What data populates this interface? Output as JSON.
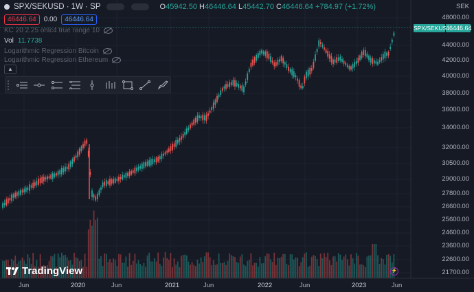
{
  "header": {
    "symbol": "SPX/SEKUSD · 1W · SP",
    "o_label": "O",
    "o_value": "45942.50",
    "h_label": "H",
    "h_value": "46446.64",
    "l_label": "L",
    "l_value": "45442.70",
    "c_label": "C",
    "c_value": "46446.64",
    "change": "+784.97 (+1.72%)",
    "sell_price": "46446.64",
    "spread": "0.00",
    "buy_price": "46446.64"
  },
  "indicators": [
    {
      "label": "KC 20 2.25 ohlc4 true range 10",
      "icon": "eye-off-icon"
    },
    {
      "label": "Vol",
      "value": "11.7738"
    },
    {
      "label": "Logarithmic Regression Bitcoin",
      "icon": "eye-off-icon"
    },
    {
      "label": "Logarithmic Regression Ethereum",
      "icon": "eye-off-icon"
    }
  ],
  "toolbar": [
    "grip-icon",
    "horizontal-lines-icon",
    "horizontal-ray-icon",
    "parallel-channel-icon",
    "fib-retracement-icon",
    "vertical-line-icon",
    "long-position-icon",
    "rectangle-icon",
    "trend-line-icon",
    "brush-icon"
  ],
  "price_axis": {
    "currency": "SEK",
    "ticks": [
      "48000.00",
      "46446.64",
      "44000.00",
      "42000.00",
      "40000.00",
      "38000.00",
      "36000.00",
      "34000.00",
      "32000.00",
      "30500.00",
      "29000.00",
      "27800.00",
      "26600.00",
      "25600.00",
      "24600.00",
      "23600.00",
      "22600.00",
      "21700.00"
    ]
  },
  "time_axis": [
    "Jun",
    "2020",
    "Jun",
    "2021",
    "Jun",
    "2022",
    "Jun",
    "2023",
    "Jun"
  ],
  "price_tags": {
    "symbol": "SPX/SEKUSD",
    "last": "46446.64"
  },
  "brand": "TradingView",
  "colors": {
    "up": "#26a69a",
    "down": "#ef5350",
    "background": "#161a25"
  }
}
